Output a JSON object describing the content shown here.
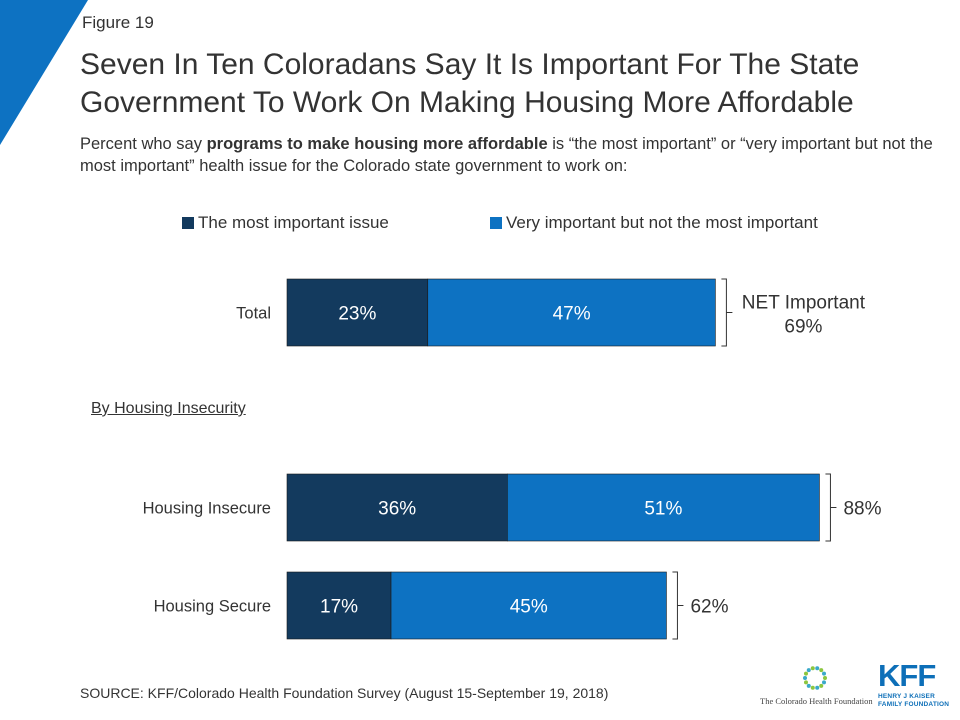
{
  "figure_label": "Figure 19",
  "title": "Seven In Ten Coloradans Say It Is Important For The State Government To Work On Making Housing More Affordable",
  "subtitle": {
    "pre": "Percent who say ",
    "bold": "programs to make housing more affordable",
    "post": " is “the most important” or “very important but not the most important” health issue for the Colorado state government to work on:"
  },
  "section_label": "By Housing Insecurity",
  "source": "SOURCE: KFF/Colorado Health Foundation Survey (August 15-September 19, 2018)",
  "logos": {
    "cohf": "The Colorado Health Foundation",
    "kff_mark": "KFF",
    "kff_line1": "HENRY J KAISER",
    "kff_line2": "FAMILY FOUNDATION"
  },
  "colors": {
    "most_important": "#133a5e",
    "very_important": "#0d72c2",
    "accent": "#0d72c2"
  },
  "chart_data": {
    "type": "bar",
    "orientation": "horizontal",
    "stacked": true,
    "categories": [
      "Total",
      "Housing Insecure",
      "Housing Secure"
    ],
    "series": [
      {
        "name": "The most important issue",
        "values": [
          23,
          36,
          17
        ],
        "labels": [
          "23%",
          "36%",
          "17%"
        ]
      },
      {
        "name": "Very important but not the most important",
        "values": [
          47,
          51,
          45
        ],
        "labels": [
          "47%",
          "51%",
          "45%"
        ]
      }
    ],
    "net": [
      {
        "label": "NET Important",
        "value": "69%"
      },
      {
        "label": "",
        "value": "88%"
      },
      {
        "label": "",
        "value": "62%"
      }
    ],
    "xlim": [
      0,
      100
    ],
    "legend_position": "top",
    "grid": false
  }
}
